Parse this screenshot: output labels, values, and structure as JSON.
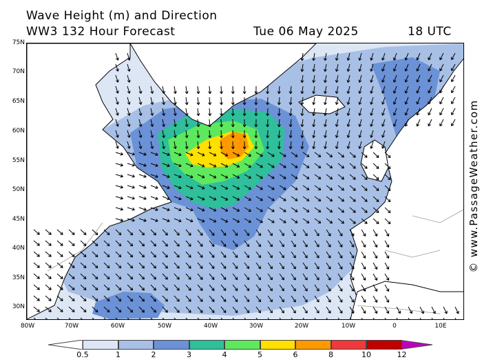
{
  "title": {
    "line1": "Wave Height (m) and Direction",
    "line2": "WW3 132 Hour Forecast",
    "date": "Tue 06 May 2025",
    "time": "18 UTC"
  },
  "copyright": "© www.PassageWeather.com",
  "map": {
    "lat_labels": [
      "75N",
      "70N",
      "65N",
      "60N",
      "55N",
      "50N",
      "45N",
      "40N",
      "35N",
      "30N"
    ],
    "lon_labels": [
      "80W",
      "70W",
      "60W",
      "50W",
      "40W",
      "30W",
      "20W",
      "10W",
      "0",
      "10E"
    ],
    "colors": {
      "land": "#ffffff",
      "coast": "#000000",
      "border": "#9a9a9a",
      "arrow": "#000000"
    }
  },
  "legend": {
    "ticks": [
      "0.5",
      "1",
      "2",
      "3",
      "4",
      "5",
      "6",
      "8",
      "10",
      "12"
    ],
    "colors": [
      "#dce6f5",
      "#a8c0e6",
      "#6b91d6",
      "#2fbf9a",
      "#5ee85e",
      "#ffe000",
      "#ff9900",
      "#ee3a3a",
      "#c00000",
      "#c000c0"
    ]
  }
}
